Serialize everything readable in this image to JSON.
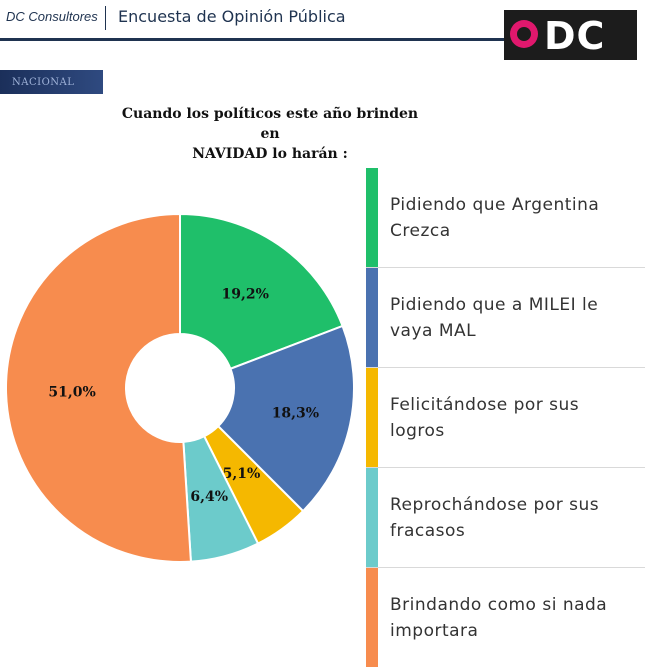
{
  "header": {
    "brand": "DC Consultores",
    "survey_title": "Encuesta de Opinión Pública",
    "logo_text": "DC"
  },
  "section_tag": "NACIONAL",
  "chart_data": {
    "type": "pie",
    "title_line1": "Cuando los políticos este año brinden en",
    "title_line2": "NAVIDAD lo harán :",
    "donut": true,
    "slices": [
      {
        "label": "Pidiendo que Argentina Crezca",
        "label_line1": "Pidiendo que Argentina",
        "label_line2": "Crezca",
        "value": 19.2,
        "display": "19,2%",
        "color": "#1fbf6a"
      },
      {
        "label": "Pidiendo que a MILEI le vaya MAL",
        "label_line1": "Pidiendo que a MILEI le",
        "label_line2": "vaya MAL",
        "value": 18.3,
        "display": "18,3%",
        "color": "#4a72b0"
      },
      {
        "label": "Felicitándose por sus logros",
        "label_line1": "Felicitándose por sus",
        "label_line2": "logros",
        "value": 5.1,
        "display": "5,1%",
        "color": "#f5b800"
      },
      {
        "label": "Reprochándose por sus fracasos",
        "label_line1": "Reprochándose por sus",
        "label_line2": "fracasos",
        "value": 6.4,
        "display": "6,4%",
        "color": "#6ccbcb"
      },
      {
        "label": "Brindando como si nada importara",
        "label_line1": "Brindando como si nada",
        "label_line2": "importara",
        "value": 51.0,
        "display": "51,0%",
        "color": "#f78c4e"
      }
    ],
    "legend_position": "right"
  }
}
